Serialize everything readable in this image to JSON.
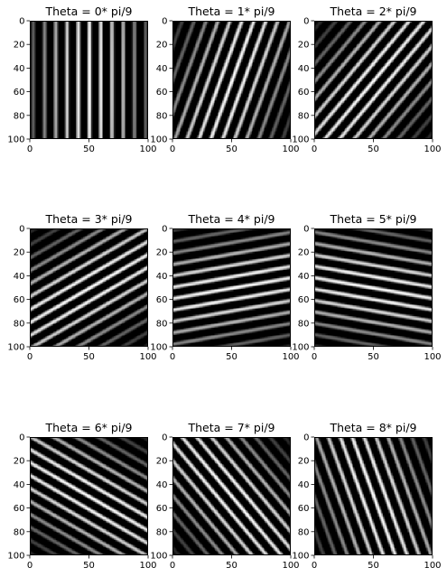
{
  "figure": {
    "rows": 3,
    "cols": 3,
    "colormap": "gray",
    "background": "#ffffff",
    "image_extent": [
      0,
      100
    ],
    "x_ticks": [
      "0",
      "50",
      "100"
    ],
    "y_ticks": [
      "0",
      "20",
      "40",
      "60",
      "80",
      "100"
    ],
    "panels": [
      {
        "title": "Theta = 0* pi/9",
        "theta_multiple": 0
      },
      {
        "title": "Theta = 1* pi/9",
        "theta_multiple": 1
      },
      {
        "title": "Theta = 2* pi/9",
        "theta_multiple": 2
      },
      {
        "title": "Theta = 3* pi/9",
        "theta_multiple": 3
      },
      {
        "title": "Theta = 4* pi/9",
        "theta_multiple": 4
      },
      {
        "title": "Theta = 5* pi/9",
        "theta_multiple": 5
      },
      {
        "title": "Theta = 6* pi/9",
        "theta_multiple": 6
      },
      {
        "title": "Theta = 7* pi/9",
        "theta_multiple": 7
      },
      {
        "title": "Theta = 8* pi/9",
        "theta_multiple": 8
      }
    ]
  }
}
